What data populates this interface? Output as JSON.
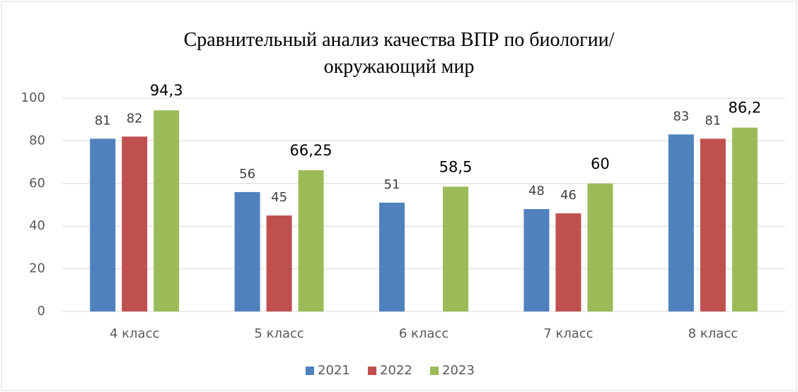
{
  "chart_data": {
    "type": "bar",
    "title": "Сравнительный анализ качества ВПР по биологии/окружающий мир",
    "categories": [
      "4 класс",
      "5 класс",
      "6 класс",
      "7 класс",
      "8 класс"
    ],
    "series": [
      {
        "name": "2021",
        "color": "#4f81bd",
        "values": [
          81,
          56,
          51,
          48,
          83
        ]
      },
      {
        "name": "2022",
        "color": "#c0504d",
        "values": [
          82,
          45,
          null,
          46,
          81
        ]
      },
      {
        "name": "2023",
        "color": "#9bbb59",
        "values": [
          94.3,
          66.25,
          58.5,
          60,
          86.2
        ],
        "value_labels": [
          "94,3",
          "66,25",
          "58,5",
          "60",
          "86,2"
        ]
      }
    ],
    "ylim": [
      0,
      100
    ],
    "yticks": [
      0,
      20,
      40,
      60,
      80,
      100
    ],
    "grid": true,
    "legend": "bottom"
  }
}
